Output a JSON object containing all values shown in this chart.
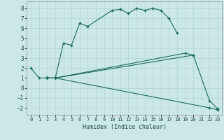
{
  "xlabel": "Humidex (Indice chaleur)",
  "background_color": "#cce8e6",
  "grid_color": "#aed4d1",
  "line_color": "#1a6b5a",
  "xlim": [
    -0.5,
    23.5
  ],
  "ylim": [
    -2.7,
    8.7
  ],
  "xticks": [
    0,
    1,
    2,
    3,
    4,
    5,
    6,
    7,
    8,
    9,
    10,
    11,
    12,
    13,
    14,
    15,
    16,
    17,
    18,
    19,
    20,
    21,
    22,
    23
  ],
  "yticks": [
    -2,
    -1,
    0,
    1,
    2,
    3,
    4,
    5,
    6,
    7,
    8
  ],
  "series": [
    {
      "x": [
        0,
        1,
        2,
        3,
        4,
        5,
        6,
        7,
        10,
        11,
        12,
        13,
        14,
        15,
        16,
        17,
        18
      ],
      "y": [
        2.0,
        1.0,
        1.0,
        1.0,
        4.5,
        4.3,
        6.5,
        6.2,
        7.8,
        7.9,
        7.5,
        8.0,
        7.8,
        8.0,
        7.8,
        7.0,
        5.5
      ]
    },
    {
      "x": [
        2,
        3,
        19,
        20
      ],
      "y": [
        1.0,
        1.0,
        3.5,
        3.3
      ]
    },
    {
      "x": [
        2,
        3,
        20,
        22,
        23
      ],
      "y": [
        1.0,
        1.0,
        3.3,
        -1.3,
        -2.1
      ]
    },
    {
      "x": [
        2,
        3,
        22,
        23
      ],
      "y": [
        1.0,
        1.0,
        -2.0,
        -2.2
      ]
    }
  ]
}
